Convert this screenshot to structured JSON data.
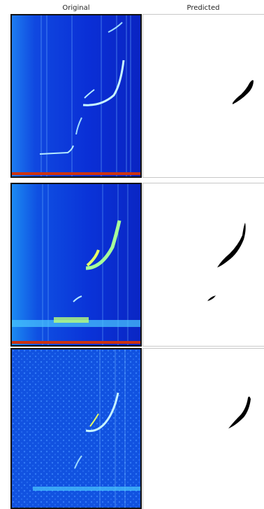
{
  "headers": {
    "original": "Original",
    "predicted": "Predicted"
  },
  "colors": {
    "spectrogram_bg": "#0b2fd8",
    "signal_bright": "#8fe8ff",
    "signal_peak": "#e6ff66",
    "noise_floor_band": "#cc3311",
    "mask_fill": "#000000"
  },
  "panels": [
    {
      "row": 1,
      "original": "spectrogram",
      "predicted": "binary mask"
    },
    {
      "row": 2,
      "original": "spectrogram",
      "predicted": "binary mask"
    },
    {
      "row": 3,
      "original": "spectrogram",
      "predicted": "binary mask"
    }
  ]
}
